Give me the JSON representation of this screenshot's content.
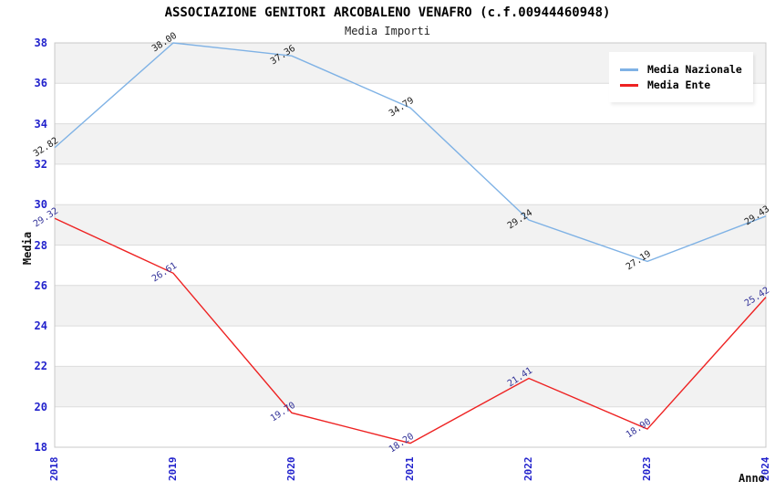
{
  "header": {
    "title": "ASSOCIAZIONE GENITORI ARCOBALENO VENAFRO (c.f.00944460948)",
    "subtitle": "Media Importi"
  },
  "axes": {
    "y_label": "Media",
    "x_label": "Anno",
    "tick_color": "#2222cc"
  },
  "legend": {
    "items": [
      {
        "label": "Media Nazionale",
        "color": "#7fb2e5"
      },
      {
        "label": "Media Ente",
        "color": "#ee2222"
      }
    ]
  },
  "colors": {
    "band_fill": "#f2f2f2",
    "grid_line": "#dcdcdc",
    "plot_border": "#c8c8c8",
    "background": "#ffffff"
  },
  "chart_data": {
    "type": "line",
    "title": "ASSOCIAZIONE GENITORI ARCOBALENO VENAFRO (c.f.00944460948)",
    "subtitle": "Media Importi",
    "xlabel": "Anno",
    "ylabel": "Media",
    "categories": [
      "2018",
      "2019",
      "2020",
      "2021",
      "2022",
      "2023",
      "2024"
    ],
    "series": [
      {
        "name": "Media Nazionale",
        "color": "#7fb2e5",
        "label_color": "#1a1a1a",
        "values": [
          32.82,
          38.0,
          37.36,
          34.79,
          29.24,
          27.19,
          29.43
        ]
      },
      {
        "name": "Media Ente",
        "color": "#ee2222",
        "label_color": "#333399",
        "values": [
          29.32,
          26.61,
          19.7,
          18.2,
          21.41,
          18.9,
          25.42
        ]
      }
    ],
    "ylim": [
      18,
      38
    ],
    "ytick_step": 2,
    "grid": "horizontal-bands-alternating",
    "legend_position": "top-right",
    "data_label_decimals": 2
  }
}
